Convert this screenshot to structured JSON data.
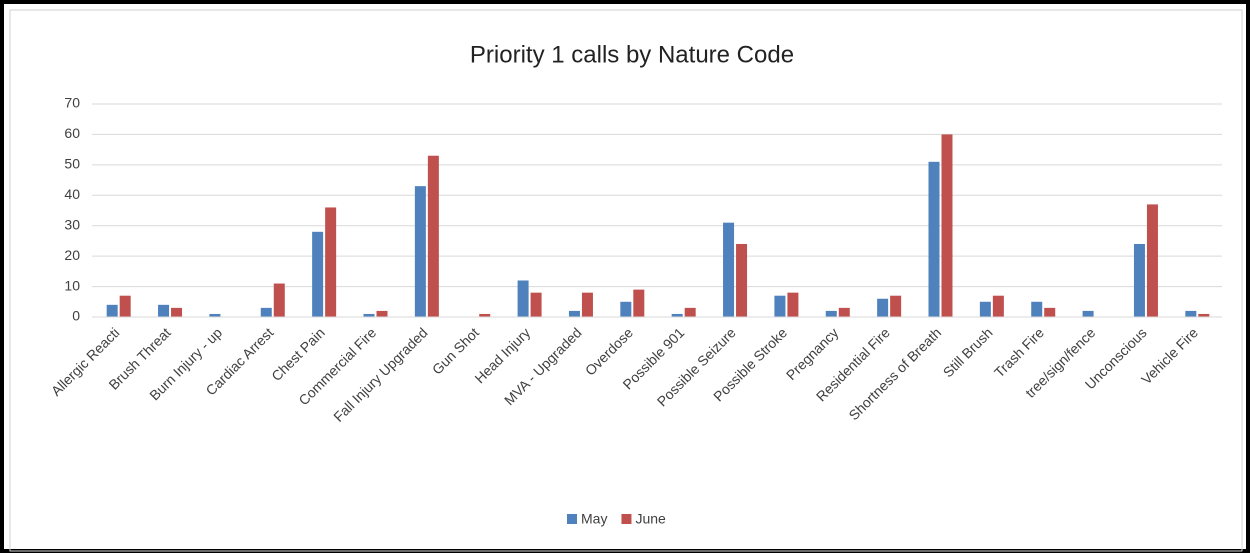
{
  "chart_data": {
    "type": "bar",
    "title": "Priority 1 calls by Nature Code",
    "categories": [
      "Allergic Reacti",
      "Brush Threat",
      "Burn Injury - up",
      "Cardiac Arrest",
      "Chest Pain",
      "Commercial Fire",
      "Fall Injury Upgraded",
      "Gun Shot",
      "Head Injury",
      "MVA - Upgraded",
      "Overdose",
      "Possible 901",
      "Possible Seizure",
      "Possible Stroke",
      "Pregnancy",
      "Residential Fire",
      "Shortness of Breath",
      "Still Brush",
      "Trash Fire",
      "tree/sign/fence",
      "Unconscious",
      "Vehicle Fire"
    ],
    "series": [
      {
        "name": "May",
        "color": "#4f81bd",
        "values": [
          4,
          4,
          1,
          3,
          28,
          1,
          43,
          0,
          12,
          2,
          5,
          1,
          31,
          7,
          2,
          6,
          51,
          5,
          5,
          2,
          24,
          2
        ]
      },
      {
        "name": "June",
        "color": "#c0504d",
        "values": [
          7,
          3,
          0,
          11,
          36,
          2,
          53,
          1,
          8,
          8,
          9,
          3,
          24,
          8,
          3,
          7,
          60,
          7,
          3,
          0,
          37,
          1
        ]
      }
    ],
    "ylim": [
      0,
      70
    ],
    "yticks": [
      0,
      10,
      20,
      30,
      40,
      50,
      60,
      70
    ],
    "grid": true,
    "legend": "bottom"
  }
}
